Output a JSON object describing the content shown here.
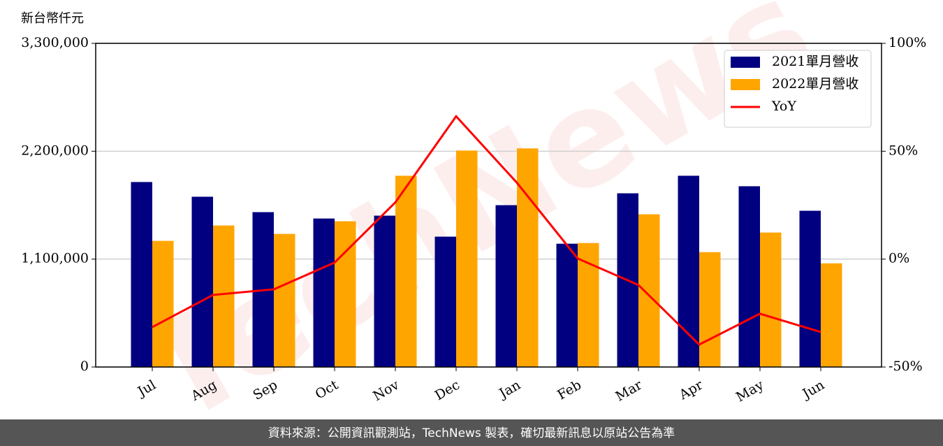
{
  "chart_data": {
    "type": "bar_line",
    "y_label": "新台幣仟元",
    "watermark": "TechNews",
    "footer": "資料來源：公開資訊觀測站，TechNews 製表，確切最新訊息以原站公告為準",
    "categories": [
      "Jul",
      "Aug",
      "Sep",
      "Oct",
      "Nov",
      "Dec",
      "Jan",
      "Feb",
      "Mar",
      "Apr",
      "May",
      "Jun"
    ],
    "series": [
      {
        "name": "2021單月營收",
        "color": "#000080",
        "kind": "bar",
        "values": [
          1886000,
          1736000,
          1579000,
          1514000,
          1543000,
          1329000,
          1650000,
          1257000,
          1771000,
          1950000,
          1843000,
          1593000
        ]
      },
      {
        "name": "2022單月營收",
        "color": "#ffa500",
        "kind": "bar",
        "values": [
          1286000,
          1443000,
          1357000,
          1486000,
          1950000,
          2207000,
          2229000,
          1264000,
          1557000,
          1171000,
          1371000,
          1057000
        ]
      },
      {
        "name": "YoY",
        "color": "#ff0000",
        "kind": "line",
        "axis": "y2",
        "values": [
          -31.5,
          -16.6,
          -14,
          -1.6,
          26.3,
          66.2,
          35.4,
          0.3,
          -12,
          -39.6,
          -25.3,
          -33.8
        ]
      }
    ],
    "ylim": [
      0,
      3300000
    ],
    "yticks": [
      0,
      {
        "value": 1100000,
        "label": "1,100,000"
      },
      {
        "value": 2200000,
        "label": "2,200,000"
      },
      {
        "value": 3300000,
        "label": "3,300,000"
      }
    ],
    "y2lim": [
      -50,
      100
    ],
    "y2ticks": [
      {
        "value": -50,
        "label": "-50%"
      },
      {
        "value": 0,
        "label": "0%"
      },
      {
        "value": 50,
        "label": "50%"
      },
      {
        "value": 100,
        "label": "100%"
      }
    ],
    "grid": true,
    "legend": "upper right"
  }
}
